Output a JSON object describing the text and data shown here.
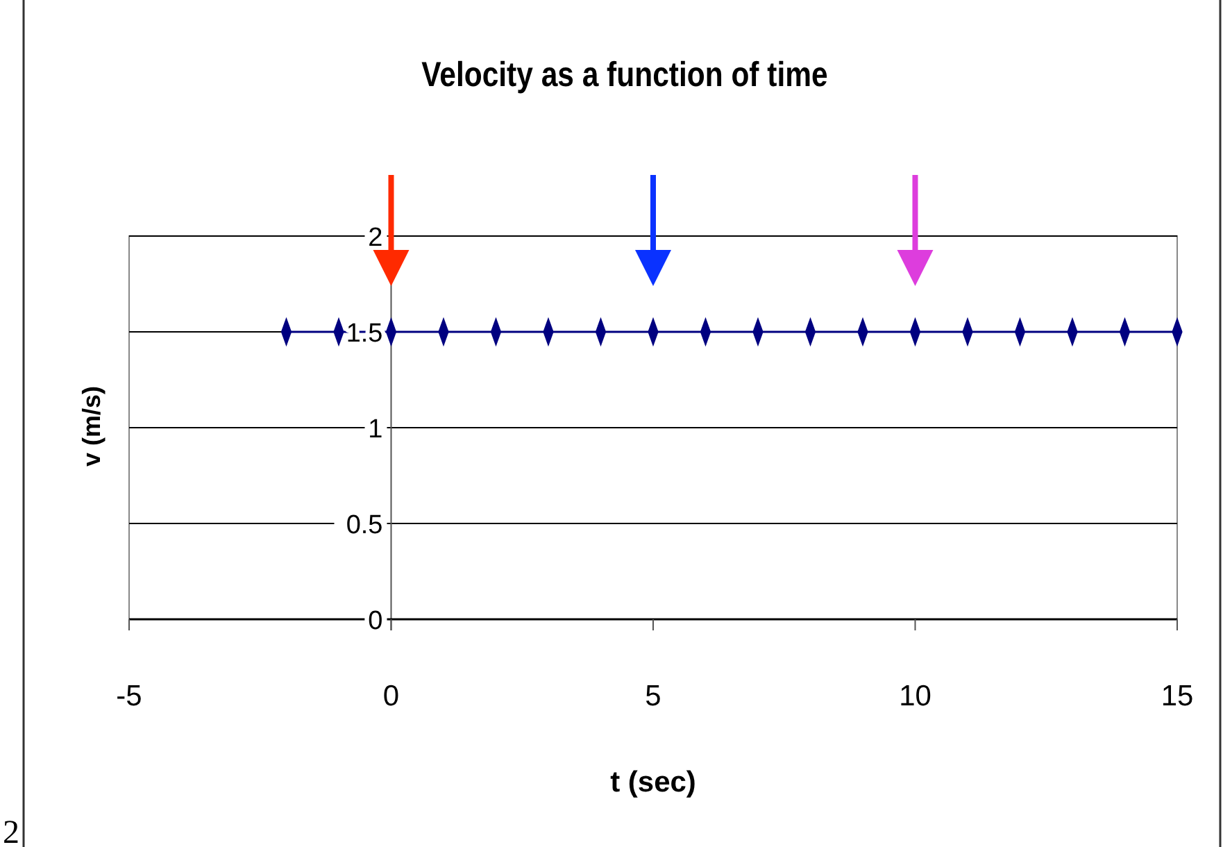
{
  "chart_data": {
    "type": "line",
    "title": "Velocity as a function of time",
    "xlabel": "t (sec)",
    "ylabel": "v (m/s)",
    "x": [
      -2,
      -1,
      0,
      1,
      2,
      3,
      4,
      5,
      6,
      7,
      8,
      9,
      10,
      11,
      12,
      13,
      14,
      15
    ],
    "series": [
      {
        "color": "#000080",
        "values": [
          1.5,
          1.5,
          1.5,
          1.5,
          1.5,
          1.5,
          1.5,
          1.5,
          1.5,
          1.5,
          1.5,
          1.5,
          1.5,
          1.5,
          1.5,
          1.5,
          1.5,
          1.5
        ]
      }
    ],
    "xlim": [
      -5,
      15
    ],
    "xticks": [
      -5,
      0,
      5,
      10,
      15
    ],
    "ylim": [
      0,
      2
    ],
    "yticks": [
      0,
      0.5,
      1,
      1.5,
      2
    ],
    "grid": "y",
    "marker": "diamond",
    "line_style": "solid",
    "annotations": [
      "2"
    ]
  }
}
